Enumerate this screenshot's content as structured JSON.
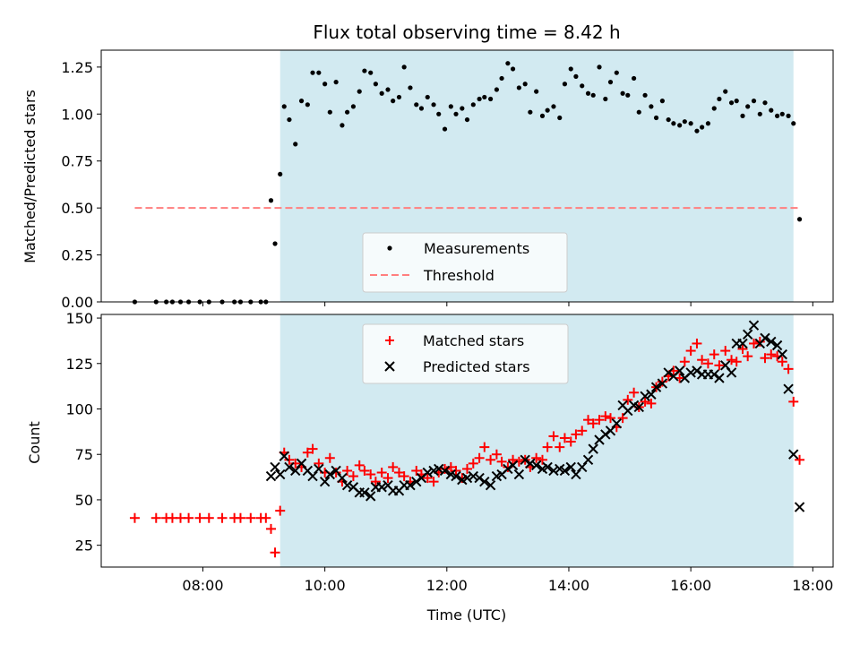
{
  "chart_data": [
    {
      "type": "scatter",
      "title": "Flux total observing time = 8.42 h",
      "xlabel": "",
      "ylabel": "Matched/Predicted stars",
      "ylim": [
        0,
        1.34
      ],
      "yticks": [
        "0.00",
        "0.25",
        "0.50",
        "0.75",
        "1.00",
        "1.25"
      ],
      "ytick_values": [
        0,
        0.25,
        0.5,
        0.75,
        1.0,
        1.25
      ],
      "shaded_span": [
        "09:16",
        "17:41"
      ],
      "shade_color": "#add8e6",
      "legend": {
        "position": "lower-center",
        "entries": [
          "Measurements",
          "Threshold"
        ]
      },
      "series": [
        {
          "name": "Measurements",
          "marker": "dot",
          "color": "#000000",
          "x": [
            "06:53",
            "07:14",
            "07:24",
            "07:30",
            "07:38",
            "07:46",
            "07:57",
            "08:06",
            "08:19",
            "08:31",
            "08:37",
            "08:47",
            "08:57",
            "09:02",
            "09:07",
            "09:11",
            "09:16",
            "09:20",
            "09:25",
            "09:31",
            "09:37",
            "09:43",
            "09:48",
            "09:54",
            "10:00",
            "10:05",
            "10:11",
            "10:17",
            "10:22",
            "10:28",
            "10:34",
            "10:39",
            "10:45",
            "10:50",
            "10:56",
            "11:02",
            "11:07",
            "11:13",
            "11:18",
            "11:24",
            "11:30",
            "11:35",
            "11:41",
            "11:47",
            "11:52",
            "11:58",
            "12:04",
            "12:09",
            "12:15",
            "12:20",
            "12:26",
            "12:32",
            "12:37",
            "12:43",
            "12:49",
            "12:54",
            "13:00",
            "13:05",
            "13:11",
            "13:17",
            "13:22",
            "13:28",
            "13:34",
            "13:39",
            "13:45",
            "13:51",
            "13:56",
            "14:02",
            "14:07",
            "14:13",
            "14:19",
            "14:24",
            "14:30",
            "14:36",
            "14:41",
            "14:47",
            "14:53",
            "14:58",
            "15:04",
            "15:09",
            "15:15",
            "15:21",
            "15:26",
            "15:32",
            "15:38",
            "15:43",
            "15:49",
            "15:54",
            "16:00",
            "16:06",
            "16:11",
            "16:17",
            "16:23",
            "16:28",
            "16:34",
            "16:40",
            "16:45",
            "16:51",
            "16:56",
            "17:02",
            "17:08",
            "17:13",
            "17:19",
            "17:25",
            "17:30",
            "17:36",
            "17:41",
            "17:47"
          ],
          "y": [
            0,
            0,
            0,
            0,
            0,
            0,
            0,
            0,
            0,
            0,
            0,
            0,
            0,
            0,
            0.54,
            0.31,
            0.68,
            1.04,
            0.97,
            0.84,
            1.07,
            1.05,
            1.22,
            1.22,
            1.16,
            1.01,
            1.17,
            0.94,
            1.01,
            1.04,
            1.12,
            1.23,
            1.22,
            1.16,
            1.11,
            1.13,
            1.07,
            1.09,
            1.25,
            1.14,
            1.05,
            1.03,
            1.09,
            1.05,
            1.0,
            0.92,
            1.04,
            1.0,
            1.03,
            0.97,
            1.05,
            1.08,
            1.09,
            1.08,
            1.13,
            1.19,
            1.27,
            1.24,
            1.14,
            1.16,
            1.01,
            1.12,
            0.99,
            1.02,
            1.04,
            0.98,
            1.16,
            1.24,
            1.2,
            1.15,
            1.11,
            1.1,
            1.25,
            1.08,
            1.17,
            1.22,
            1.11,
            1.1,
            1.19,
            1.01,
            1.1,
            1.04,
            0.98,
            1.07,
            0.97,
            0.95,
            0.94,
            0.96,
            0.95,
            0.91,
            0.93,
            0.95,
            1.03,
            1.08,
            1.12,
            1.06,
            1.07,
            0.99,
            1.04,
            1.07,
            1.0,
            1.06,
            1.02,
            0.99,
            1.0,
            0.99,
            0.95,
            0.44
          ]
        },
        {
          "name": "Threshold",
          "style": "dashed",
          "color": "#ff7f7f",
          "x": [
            "06:53",
            "17:47"
          ],
          "y": [
            0.5,
            0.5
          ]
        }
      ]
    },
    {
      "type": "scatter",
      "title": "",
      "xlabel": "Time (UTC)",
      "ylabel": "Count",
      "ylim": [
        13,
        152
      ],
      "yticks": [
        "25",
        "50",
        "75",
        "100",
        "125",
        "150"
      ],
      "ytick_values": [
        25,
        50,
        75,
        100,
        125,
        150
      ],
      "xticks": [
        "08:00",
        "10:00",
        "12:00",
        "14:00",
        "16:00",
        "18:00"
      ],
      "xlim": [
        "06:20",
        "18:20"
      ],
      "shaded_span": [
        "09:16",
        "17:41"
      ],
      "shade_color": "#add8e6",
      "legend": {
        "position": "upper-center",
        "entries": [
          "Matched stars",
          "Predicted stars"
        ]
      },
      "series": [
        {
          "name": "Matched stars",
          "marker": "plus",
          "color": "#ff0000",
          "x": [
            "06:53",
            "07:14",
            "07:24",
            "07:30",
            "07:38",
            "07:46",
            "07:57",
            "08:06",
            "08:19",
            "08:31",
            "08:37",
            "08:47",
            "08:57",
            "09:02",
            "09:07",
            "09:11",
            "09:16",
            "09:20",
            "09:25",
            "09:31",
            "09:37",
            "09:43",
            "09:48",
            "09:54",
            "10:00",
            "10:05",
            "10:11",
            "10:17",
            "10:22",
            "10:28",
            "10:34",
            "10:39",
            "10:45",
            "10:50",
            "10:56",
            "11:02",
            "11:07",
            "11:13",
            "11:18",
            "11:24",
            "11:30",
            "11:35",
            "11:41",
            "11:47",
            "11:52",
            "11:58",
            "12:04",
            "12:09",
            "12:15",
            "12:20",
            "12:26",
            "12:32",
            "12:37",
            "12:43",
            "12:49",
            "12:54",
            "13:00",
            "13:05",
            "13:11",
            "13:17",
            "13:22",
            "13:28",
            "13:34",
            "13:39",
            "13:45",
            "13:51",
            "13:56",
            "14:02",
            "14:07",
            "14:13",
            "14:19",
            "14:24",
            "14:30",
            "14:36",
            "14:41",
            "14:47",
            "14:53",
            "14:58",
            "15:04",
            "15:09",
            "15:15",
            "15:21",
            "15:26",
            "15:32",
            "15:38",
            "15:43",
            "15:49",
            "15:54",
            "16:00",
            "16:06",
            "16:11",
            "16:17",
            "16:23",
            "16:28",
            "16:34",
            "16:40",
            "16:45",
            "16:51",
            "16:56",
            "17:02",
            "17:08",
            "17:13",
            "17:19",
            "17:25",
            "17:30",
            "17:36",
            "17:41",
            "17:47"
          ],
          "y": [
            40,
            40,
            40,
            40,
            40,
            40,
            40,
            40,
            40,
            40,
            40,
            40,
            40,
            40,
            34,
            21,
            44,
            76,
            72,
            70,
            68,
            76,
            78,
            70,
            65,
            73,
            65,
            60,
            66,
            63,
            69,
            66,
            64,
            60,
            65,
            62,
            68,
            65,
            63,
            60,
            66,
            64,
            62,
            60,
            65,
            67,
            68,
            66,
            62,
            67,
            70,
            73,
            79,
            72,
            75,
            71,
            68,
            72,
            71,
            72,
            68,
            73,
            72,
            79,
            85,
            79,
            84,
            82,
            86,
            88,
            94,
            92,
            94,
            96,
            95,
            90,
            95,
            105,
            109,
            101,
            104,
            103,
            112,
            115,
            118,
            121,
            117,
            126,
            132,
            136,
            127,
            125,
            130,
            124,
            132,
            127,
            126,
            133,
            129,
            136,
            137,
            128,
            130,
            129,
            126,
            122,
            104,
            72
          ]
        },
        {
          "name": "Predicted stars",
          "marker": "x",
          "color": "#000000",
          "x": [
            "09:07",
            "09:11",
            "09:16",
            "09:20",
            "09:25",
            "09:31",
            "09:37",
            "09:43",
            "09:48",
            "09:54",
            "10:00",
            "10:05",
            "10:11",
            "10:17",
            "10:22",
            "10:28",
            "10:34",
            "10:39",
            "10:45",
            "10:50",
            "10:56",
            "11:02",
            "11:07",
            "11:13",
            "11:18",
            "11:24",
            "11:30",
            "11:35",
            "11:41",
            "11:47",
            "11:52",
            "11:58",
            "12:04",
            "12:09",
            "12:15",
            "12:20",
            "12:26",
            "12:32",
            "12:37",
            "12:43",
            "12:49",
            "12:54",
            "13:00",
            "13:05",
            "13:11",
            "13:17",
            "13:22",
            "13:28",
            "13:34",
            "13:39",
            "13:45",
            "13:51",
            "13:56",
            "14:02",
            "14:07",
            "14:13",
            "14:19",
            "14:24",
            "14:30",
            "14:36",
            "14:41",
            "14:47",
            "14:53",
            "14:58",
            "15:04",
            "15:09",
            "15:15",
            "15:21",
            "15:26",
            "15:32",
            "15:38",
            "15:43",
            "15:49",
            "15:54",
            "16:00",
            "16:06",
            "16:11",
            "16:17",
            "16:23",
            "16:28",
            "16:34",
            "16:40",
            "16:45",
            "16:51",
            "16:56",
            "17:02",
            "17:08",
            "17:13",
            "17:19",
            "17:25",
            "17:30",
            "17:36",
            "17:41",
            "17:47"
          ],
          "y": [
            63,
            68,
            64,
            74,
            68,
            66,
            70,
            66,
            63,
            67,
            60,
            64,
            66,
            62,
            58,
            57,
            54,
            54,
            52,
            57,
            57,
            58,
            55,
            55,
            58,
            58,
            60,
            62,
            65,
            66,
            67,
            66,
            64,
            63,
            61,
            62,
            63,
            62,
            60,
            58,
            63,
            64,
            67,
            69,
            64,
            72,
            70,
            69,
            67,
            68,
            66,
            67,
            66,
            68,
            64,
            68,
            72,
            78,
            83,
            86,
            88,
            92,
            102,
            99,
            102,
            101,
            107,
            108,
            112,
            114,
            120,
            118,
            121,
            117,
            120,
            121,
            119,
            119,
            119,
            117,
            124,
            120,
            136,
            136,
            141,
            146,
            136,
            139,
            137,
            135,
            130,
            111,
            75,
            46
          ]
        }
      ]
    }
  ]
}
